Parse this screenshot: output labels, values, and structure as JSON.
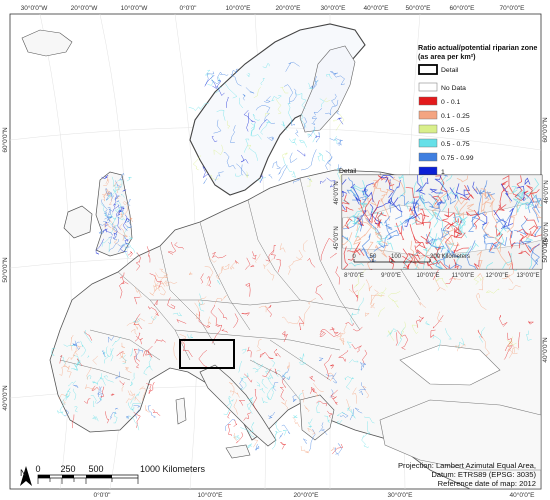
{
  "map": {
    "legend": {
      "title_line1": "Ratio actual/potential riparian zone",
      "title_line2": "(as area per km²)",
      "detail_label": "Detail",
      "nodata_label": "No Data",
      "classes": [
        {
          "label": "0 - 0.1",
          "color": "#e31a1c"
        },
        {
          "label": "0.1 - 0.25",
          "color": "#f4a582"
        },
        {
          "label": "0.25 - 0.5",
          "color": "#d9ef8b"
        },
        {
          "label": "0.5 - 0.75",
          "color": "#66e0e8"
        },
        {
          "label": "0.75 - 0.99",
          "color": "#3f7fe0"
        },
        {
          "label": "1",
          "color": "#0a1fd6"
        }
      ]
    },
    "top_ticks": [
      "30°0'0\"W",
      "20°0'0\"W",
      "10°0'0\"W",
      "0°0'0\"",
      "10°0'0\"E",
      "20°0'0\"E",
      "30°0'0\"E",
      "40°0'0\"E",
      "50°0'0\"E",
      "60°0'0\"E",
      "70°0'0\"E"
    ],
    "bottom_ticks": [
      "0°0'0\"",
      "10°0'0\"E",
      "20°0'0\"E",
      "30°0'0\"E",
      "40°0'0\"E"
    ],
    "left_ticks": [
      "60°0'0\"N",
      "50°0'0\"N",
      "40°0'0\"N"
    ],
    "right_ticks": [
      "60°0'0\"N",
      "50°0'0\"N",
      "40°0'0\"N"
    ],
    "inset": {
      "title": "Detail",
      "bottom_ticks": [
        "8°0'0\"E",
        "9°0'0\"E",
        "10°0'0\"E",
        "11°0'0\"E",
        "12°0'0\"E",
        "13°0'0\"E"
      ],
      "left_ticks": [
        "46°0'0\"N",
        "45°0'0\"N"
      ],
      "right_ticks": [
        "46°0'0\"N",
        "45°0'0\"N"
      ],
      "scale_labels": [
        "0",
        "50",
        "100",
        "200 Kilometers"
      ]
    },
    "scale": {
      "north": "N",
      "labels": [
        "0",
        "250",
        "500",
        "1000 Kilometers"
      ]
    },
    "projection": {
      "line1": "Projection: Lambert Azimutal Equal Area,",
      "line2": "Datum: ETRS89 (EPSG: 3035)",
      "line3": "Reference date of map: 2012"
    }
  }
}
